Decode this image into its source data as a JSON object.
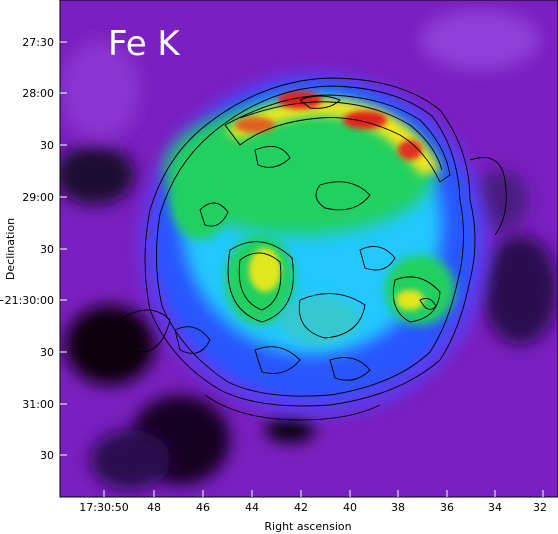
{
  "figure": {
    "panel_label": "Fe K",
    "xlabel": "Right ascension",
    "ylabel": "Declination",
    "x_ticks": [
      "17:30:50",
      "48",
      "46",
      "44",
      "42",
      "40",
      "38",
      "36",
      "34",
      "32"
    ],
    "y_ticks": [
      "27:30",
      "28:00",
      "30",
      "29:00",
      "30",
      "−21:30:00",
      "30",
      "31:00",
      "30"
    ],
    "colors": {
      "background": "#7a1fc0",
      "blue": "#2a54ff",
      "cyan": "#22c8ff",
      "green": "#20d060",
      "yellow": "#f2e61a",
      "red": "#e0201c",
      "contour": "#000000"
    }
  }
}
